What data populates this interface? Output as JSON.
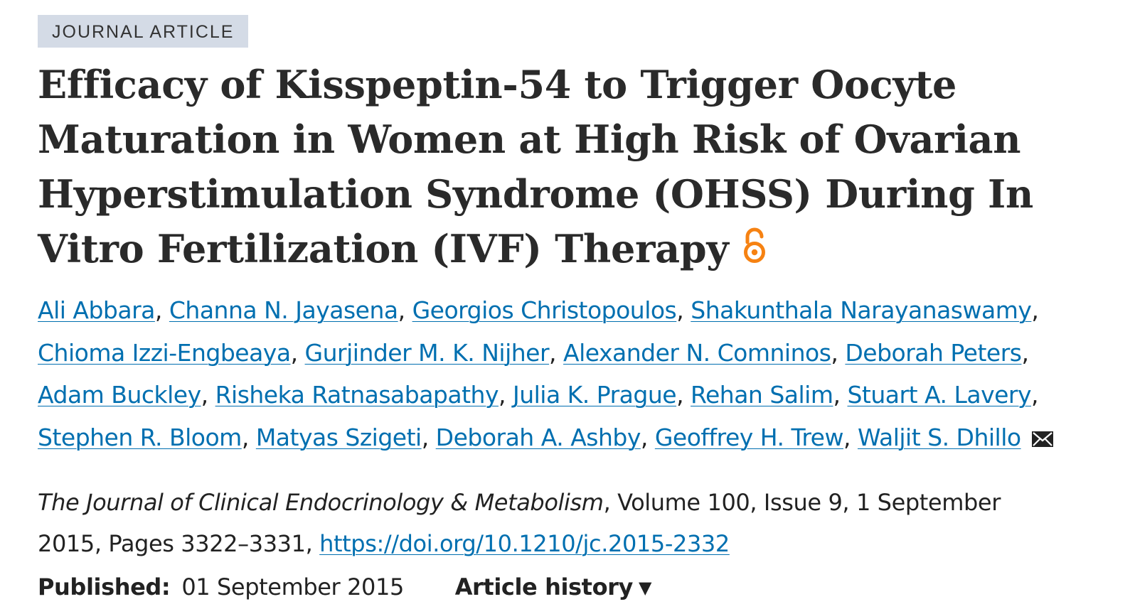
{
  "article_type": "JOURNAL ARTICLE",
  "title": "Efficacy of Kisspeptin-54 to Trigger Oocyte Maturation in Women at High Risk of Ovarian Hyperstimulation Syndrome (OHSS) During In Vitro Fertilization (IVF) Therapy",
  "title_icon": "open-access-icon",
  "authors": [
    "Ali Abbara",
    "Channa N. Jayasena",
    "Georgios Christopoulos",
    "Shakunthala Narayanaswamy",
    "Chioma Izzi-Engbeaya",
    "Gurjinder M. K. Nijher",
    "Alexander N. Comninos",
    "Deborah Peters",
    "Adam Buckley",
    "Risheka Ratnasabapathy",
    "Julia K. Prague",
    "Rehan Salim",
    "Stuart A. Lavery",
    "Stephen R. Bloom",
    "Matyas Szigeti",
    "Deborah A. Ashby",
    "Geoffrey H. Trew",
    "Waljit S. Dhillo"
  ],
  "corresponding_icon": "envelope-icon",
  "citation": {
    "journal": "The Journal of Clinical Endocrinology & Metabolism",
    "details_line1": ", Volume 100, Issue 9, 1 September",
    "details_line2": "2015, Pages 3322–3331, ",
    "doi": "https://doi.org/10.1210/jc.2015-2332"
  },
  "published": {
    "label": "Published:",
    "date": "01 September 2015"
  },
  "article_history": {
    "label": "Article history",
    "caret": "▼"
  },
  "colors": {
    "link": "#006fb0",
    "badge_bg": "#d4dbe6",
    "open_access": "#f68212"
  }
}
